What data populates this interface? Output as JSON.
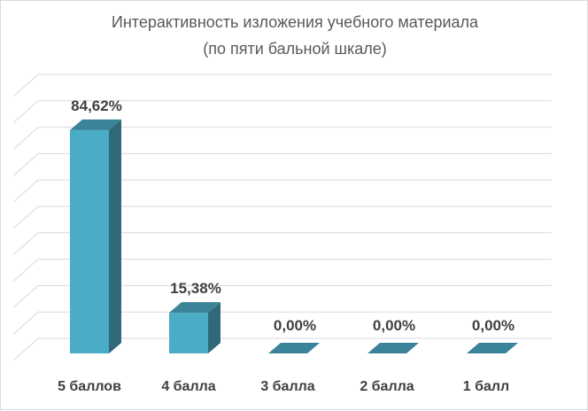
{
  "chart_data": {
    "type": "bar",
    "title": "Интерактивность изложения учебного материала",
    "subtitle": "(по пяти бальной шкале)",
    "categories": [
      "5 баллов",
      "4 балла",
      "3  балла",
      "2 балла",
      "1 балл"
    ],
    "values": [
      84.62,
      15.38,
      0,
      0,
      0
    ],
    "data_labels": [
      "84,62%",
      "15,38%",
      "0,00%",
      "0,00%",
      "0,00%"
    ],
    "ylim": [
      0,
      100
    ],
    "grid": true,
    "style": "3d-column",
    "colors": {
      "bar_front": "#4bacc6",
      "bar_side": "#31687a",
      "bar_top": "#3a8399",
      "gridline": "#d9d9d9",
      "label": "#404040",
      "title": "#595959"
    }
  }
}
